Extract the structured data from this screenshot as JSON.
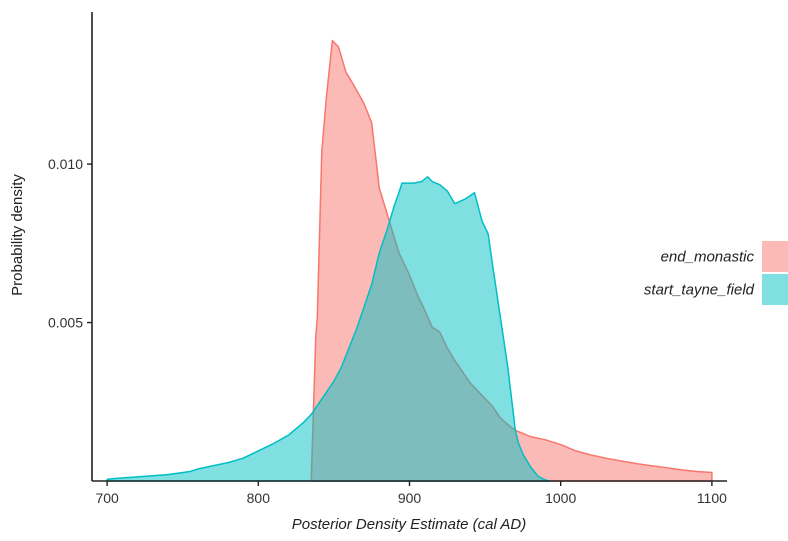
{
  "chart_data": {
    "type": "area",
    "title": "",
    "xlabel": "Posterior Density Estimate (cal AD)",
    "ylabel": "Probability density",
    "xlim": [
      690,
      1110
    ],
    "ylim": [
      0,
      0.0148
    ],
    "x_ticks": [
      700,
      800,
      900,
      1000,
      1100
    ],
    "y_ticks": [
      0.005,
      0.01
    ],
    "x_tick_labels": [
      "700",
      "800",
      "900",
      "1000",
      "1100"
    ],
    "y_tick_labels": [
      "0.005",
      "0.010"
    ],
    "grid": false,
    "legend_position": "right",
    "series": [
      {
        "name": "end_monastic",
        "color": "#F8766D",
        "fill": "#F8766D",
        "points": [
          [
            835,
            0.0
          ],
          [
            838,
            0.00455
          ],
          [
            839,
            0.00515
          ],
          [
            842,
            0.0104
          ],
          [
            845,
            0.0121
          ],
          [
            849,
            0.0139
          ],
          [
            853,
            0.0137
          ],
          [
            858,
            0.0129
          ],
          [
            863,
            0.0125
          ],
          [
            870,
            0.0119
          ],
          [
            875,
            0.0113
          ],
          [
            880,
            0.00925
          ],
          [
            887,
            0.00815
          ],
          [
            893,
            0.0072
          ],
          [
            900,
            0.0065
          ],
          [
            905,
            0.0059
          ],
          [
            910,
            0.0054
          ],
          [
            915,
            0.00485
          ],
          [
            920,
            0.0047
          ],
          [
            925,
            0.0042
          ],
          [
            930,
            0.0038
          ],
          [
            935,
            0.00345
          ],
          [
            940,
            0.0031
          ],
          [
            948,
            0.0027
          ],
          [
            955,
            0.00235
          ],
          [
            960,
            0.002
          ],
          [
            965,
            0.00178
          ],
          [
            970,
            0.0016
          ],
          [
            975,
            0.0015
          ],
          [
            980,
            0.0014
          ],
          [
            990,
            0.0013
          ],
          [
            1000,
            0.00115
          ],
          [
            1010,
            0.00095
          ],
          [
            1020,
            0.00082
          ],
          [
            1030,
            0.00072
          ],
          [
            1040,
            0.00063
          ],
          [
            1050,
            0.00055
          ],
          [
            1060,
            0.00048
          ],
          [
            1070,
            0.00042
          ],
          [
            1080,
            0.00035
          ],
          [
            1090,
            0.0003
          ],
          [
            1100,
            0.00027
          ],
          [
            1100,
            0.0
          ]
        ]
      },
      {
        "name": "start_tayne_field",
        "color": "#00BFC4",
        "fill": "#00BFC4",
        "points": [
          [
            700,
            5e-05
          ],
          [
            705,
            8e-05
          ],
          [
            720,
            0.00013
          ],
          [
            740,
            0.0002
          ],
          [
            755,
            0.0003
          ],
          [
            760,
            0.00038
          ],
          [
            770,
            0.00048
          ],
          [
            780,
            0.00058
          ],
          [
            790,
            0.00072
          ],
          [
            800,
            0.00095
          ],
          [
            810,
            0.00118
          ],
          [
            820,
            0.00145
          ],
          [
            830,
            0.00185
          ],
          [
            835,
            0.0021
          ],
          [
            840,
            0.00245
          ],
          [
            845,
            0.0028
          ],
          [
            850,
            0.00315
          ],
          [
            855,
            0.0036
          ],
          [
            860,
            0.0042
          ],
          [
            865,
            0.0048
          ],
          [
            870,
            0.0055
          ],
          [
            875,
            0.0062
          ],
          [
            880,
            0.0072
          ],
          [
            885,
            0.0079
          ],
          [
            890,
            0.0087
          ],
          [
            893,
            0.0091
          ],
          [
            895,
            0.0094
          ],
          [
            903,
            0.0094
          ],
          [
            908,
            0.00945
          ],
          [
            912,
            0.0096
          ],
          [
            915,
            0.00945
          ],
          [
            920,
            0.00935
          ],
          [
            925,
            0.00915
          ],
          [
            930,
            0.00875
          ],
          [
            937,
            0.0089
          ],
          [
            943,
            0.0091
          ],
          [
            948,
            0.0082
          ],
          [
            952,
            0.0078
          ],
          [
            955,
            0.0068
          ],
          [
            960,
            0.0052
          ],
          [
            965,
            0.0036
          ],
          [
            970,
            0.0016
          ],
          [
            972,
            0.0012
          ],
          [
            975,
            0.00085
          ],
          [
            980,
            0.00045
          ],
          [
            985,
            0.00015
          ],
          [
            990,
            3e-05
          ],
          [
            993,
            0.0
          ]
        ]
      }
    ]
  }
}
